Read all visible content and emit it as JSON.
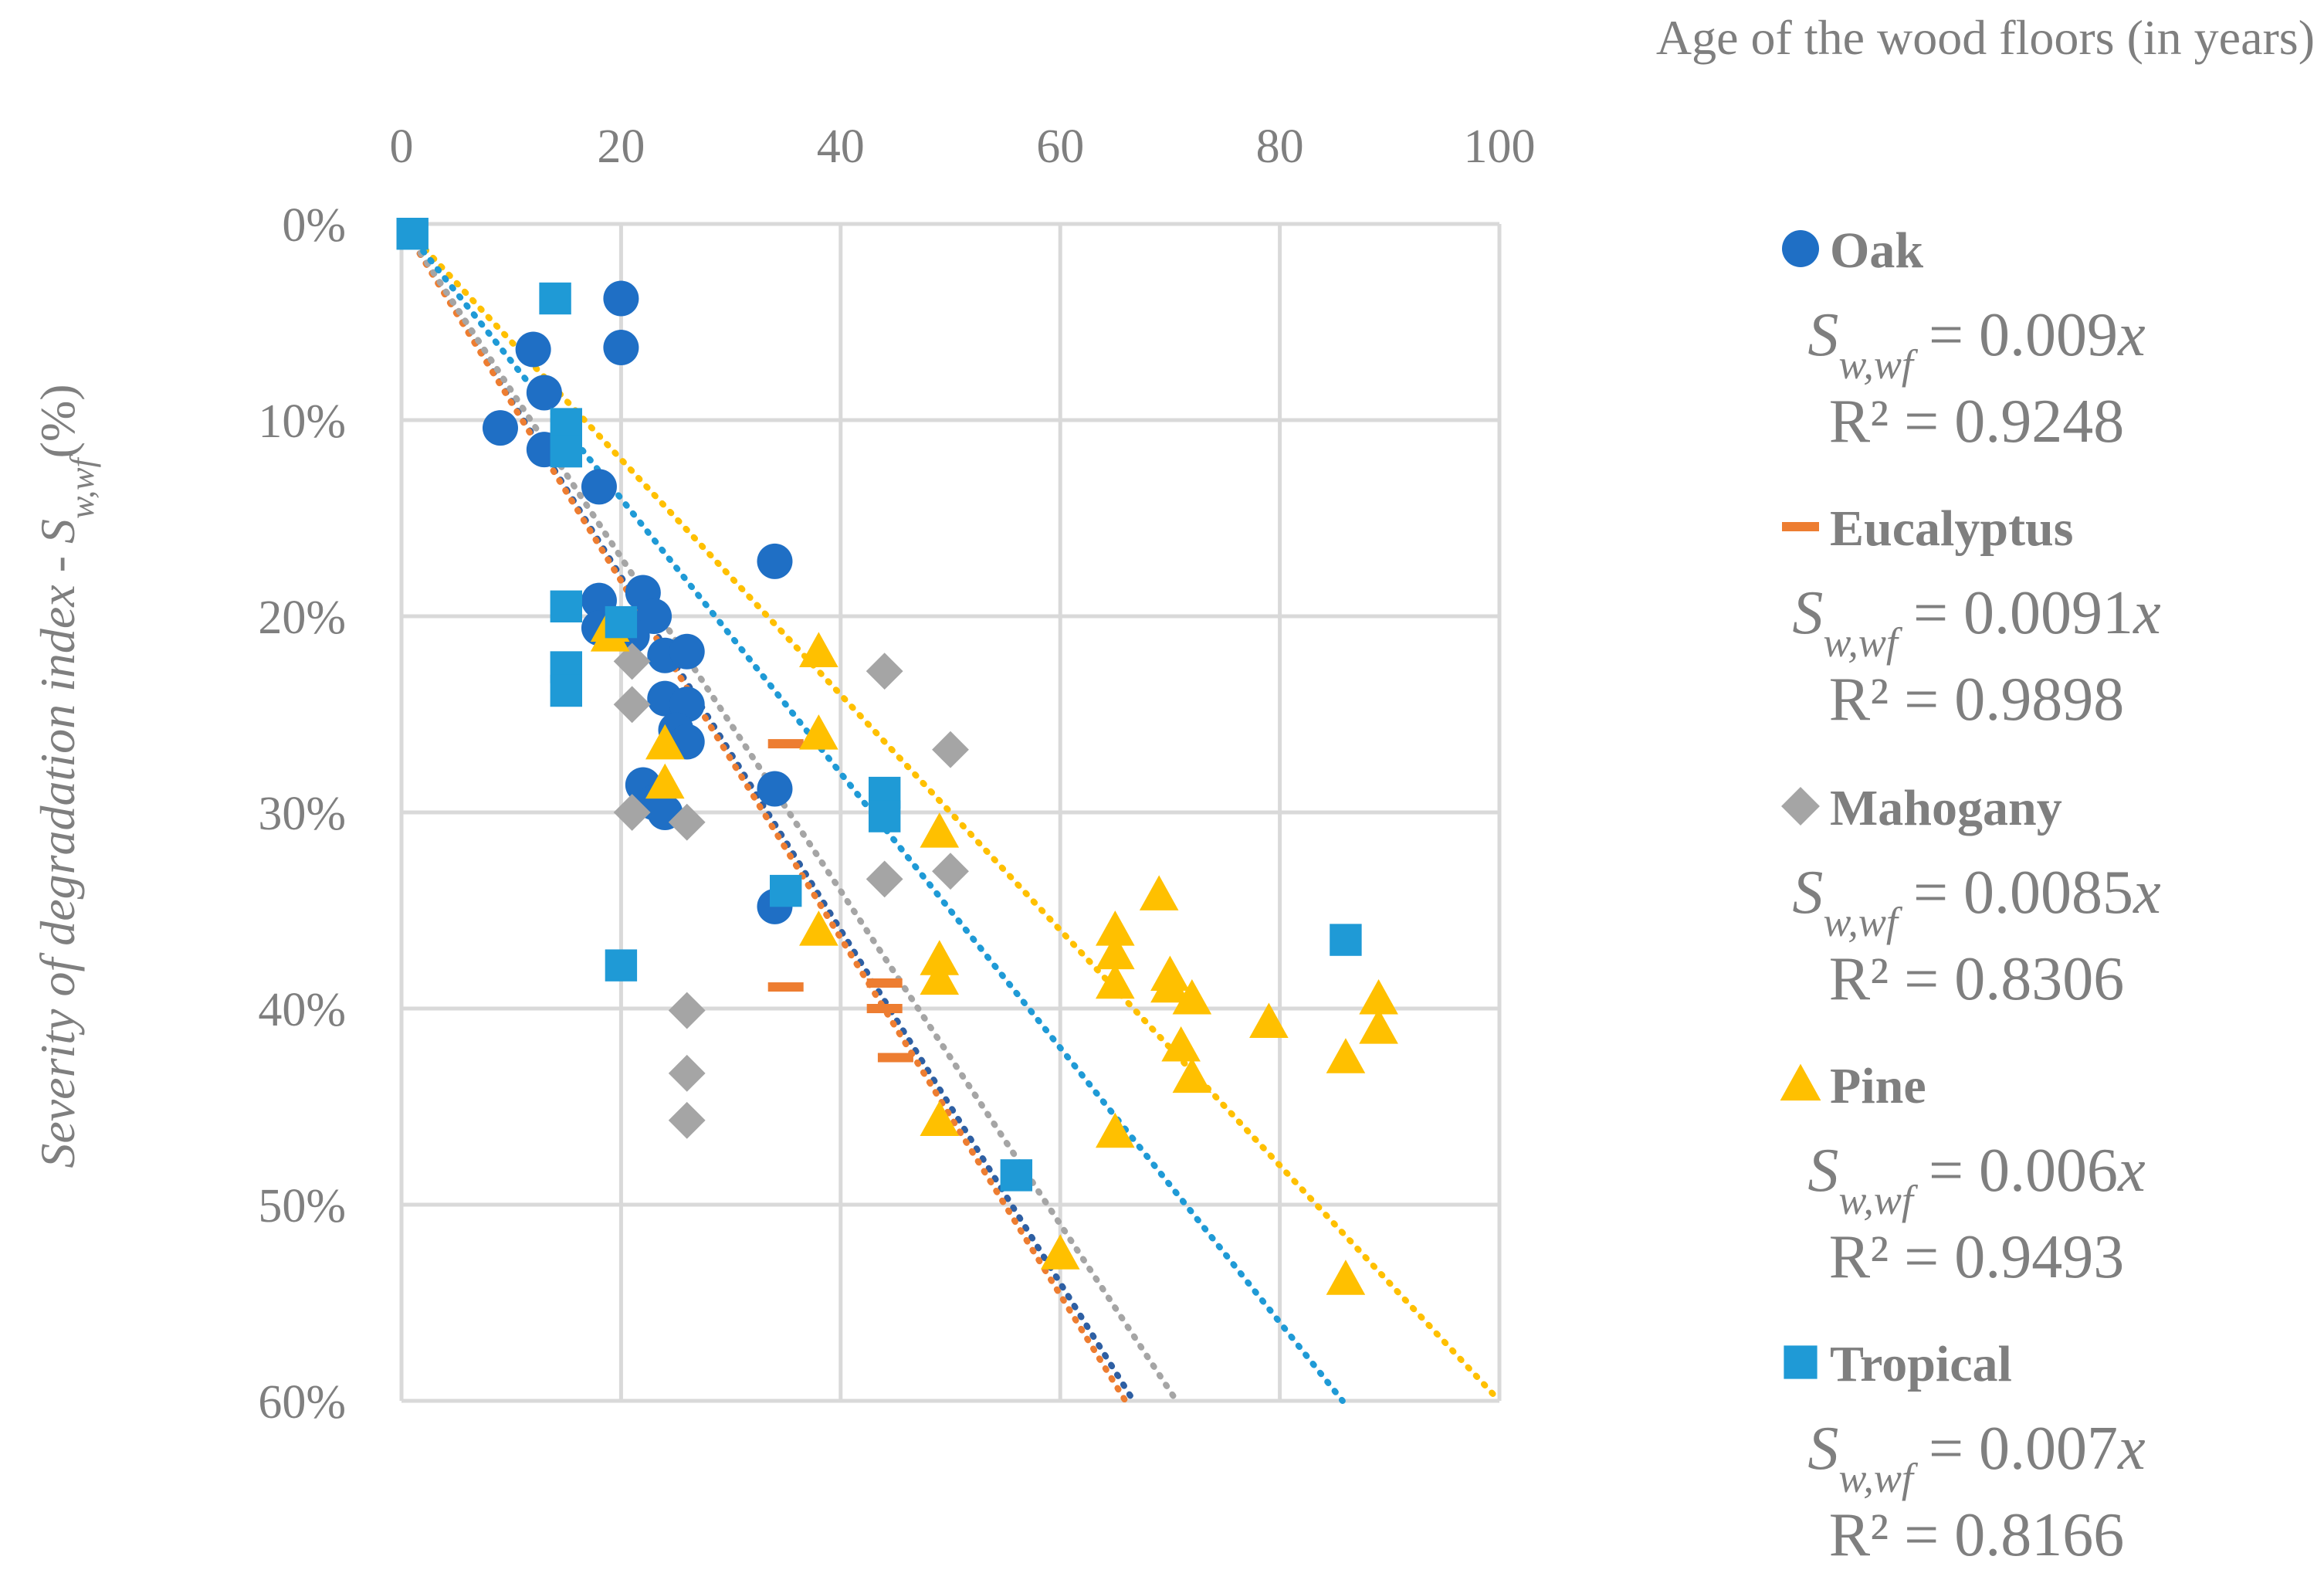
{
  "chart_data": {
    "type": "scatter",
    "x_axis": {
      "title": "Age of the wood floors (in years)",
      "position": "top",
      "range": [
        0,
        100
      ],
      "ticks": [
        "0",
        "20",
        "40",
        "60",
        "80",
        "100"
      ]
    },
    "y_axis": {
      "title_prefix": "Severity of degradation index - S",
      "title_subscript": "w,wf",
      "title_suffix": "(%)",
      "range": [
        0,
        60
      ],
      "inverted": true,
      "ticks": [
        "0%",
        "10%",
        "20%",
        "30%",
        "40%",
        "50%",
        "60%"
      ]
    },
    "grid": true,
    "legend_position": "right",
    "series": [
      {
        "name": "Oak",
        "marker": "circle",
        "color": "#1f6fc5",
        "equation": {
          "var": "S",
          "sub": "w,wf",
          "rhs": "= 0.009x"
        },
        "r2": "R² = 0.9248",
        "slope": 0.009,
        "trend_color": "#2e5fa3",
        "points": [
          [
            20,
            3.8
          ],
          [
            20,
            6.3
          ],
          [
            12,
            6.4
          ],
          [
            13,
            8.6
          ],
          [
            9,
            10.4
          ],
          [
            13,
            11.5
          ],
          [
            18,
            13.4
          ],
          [
            18,
            19.2
          ],
          [
            18,
            20.6
          ],
          [
            22,
            18.8
          ],
          [
            23,
            20
          ],
          [
            21,
            21
          ],
          [
            24,
            22
          ],
          [
            26,
            21.8
          ],
          [
            24,
            24.2
          ],
          [
            26,
            24.5
          ],
          [
            25,
            25.8
          ],
          [
            26,
            26.4
          ],
          [
            22,
            28.6
          ],
          [
            23,
            29.5
          ],
          [
            24,
            30
          ],
          [
            34,
            17.2
          ],
          [
            34,
            28.8
          ],
          [
            34,
            34.8
          ]
        ]
      },
      {
        "name": "Eucalyptus",
        "marker": "dash",
        "color": "#ed7d31",
        "equation": {
          "var": "S",
          "sub": "w,wf",
          "rhs": "= 0.0091x"
        },
        "r2": "R² = 0.9898",
        "slope": 0.0091,
        "trend_color": "#ed7d31",
        "points": [
          [
            35,
            26.5
          ],
          [
            35,
            38.9
          ],
          [
            44,
            38.7
          ],
          [
            44,
            40
          ],
          [
            45,
            42.5
          ]
        ]
      },
      {
        "name": "Mahogany",
        "marker": "diamond",
        "color": "#a5a5a5",
        "equation": {
          "var": "S",
          "sub": "w,wf",
          "rhs": "= 0.0085x"
        },
        "r2": "R² = 0.8306",
        "slope": 0.0085,
        "trend_color": "#a5a5a5",
        "points": [
          [
            21,
            22.3
          ],
          [
            21,
            24.5
          ],
          [
            21,
            30
          ],
          [
            26,
            30.5
          ],
          [
            44,
            22.8
          ],
          [
            50,
            26.8
          ],
          [
            44,
            33.4
          ],
          [
            50,
            33
          ],
          [
            26,
            40.1
          ],
          [
            26,
            43.3
          ],
          [
            26,
            45.7
          ]
        ]
      },
      {
        "name": "Pine",
        "marker": "triangle",
        "color": "#ffc000",
        "equation": {
          "var": "S",
          "sub": "w,wf",
          "rhs": "= 0.006x"
        },
        "r2": "R² = 0.9493",
        "slope": 0.006,
        "trend_color": "#ffc000",
        "points": [
          [
            19,
            20.5
          ],
          [
            19,
            21
          ],
          [
            24,
            26.5
          ],
          [
            24,
            28.5
          ],
          [
            38,
            21.8
          ],
          [
            38,
            26
          ],
          [
            38,
            36
          ],
          [
            49,
            31
          ],
          [
            49,
            37.5
          ],
          [
            49,
            38.5
          ],
          [
            49,
            45.7
          ],
          [
            60,
            52.5
          ],
          [
            65,
            36
          ],
          [
            65,
            37.2
          ],
          [
            65,
            38.7
          ],
          [
            65,
            46.3
          ],
          [
            69,
            34.2
          ],
          [
            70,
            38.3
          ],
          [
            70,
            38.9
          ],
          [
            71,
            41.9
          ],
          [
            72,
            39.5
          ],
          [
            72,
            43.5
          ],
          [
            79,
            40.7
          ],
          [
            86,
            42.5
          ],
          [
            86,
            53.8
          ],
          [
            89,
            39.5
          ],
          [
            89,
            41
          ]
        ]
      },
      {
        "name": "Tropical",
        "marker": "square",
        "color": "#1f9ad6",
        "equation": {
          "var": "S",
          "sub": "w,wf",
          "rhs": "= 0.007x"
        },
        "r2": "R² = 0.8166",
        "slope": 0.007,
        "trend_color": "#1f9ad6",
        "points": [
          [
            1,
            0.5
          ],
          [
            14,
            3.8
          ],
          [
            15,
            10.2
          ],
          [
            15,
            11.6
          ],
          [
            15,
            19.5
          ],
          [
            15,
            22.6
          ],
          [
            15,
            23.8
          ],
          [
            20,
            20.3
          ],
          [
            20,
            37.8
          ],
          [
            35,
            34
          ],
          [
            44,
            29
          ],
          [
            44,
            30.2
          ],
          [
            86,
            36.5
          ],
          [
            56,
            48.5
          ]
        ]
      }
    ]
  }
}
